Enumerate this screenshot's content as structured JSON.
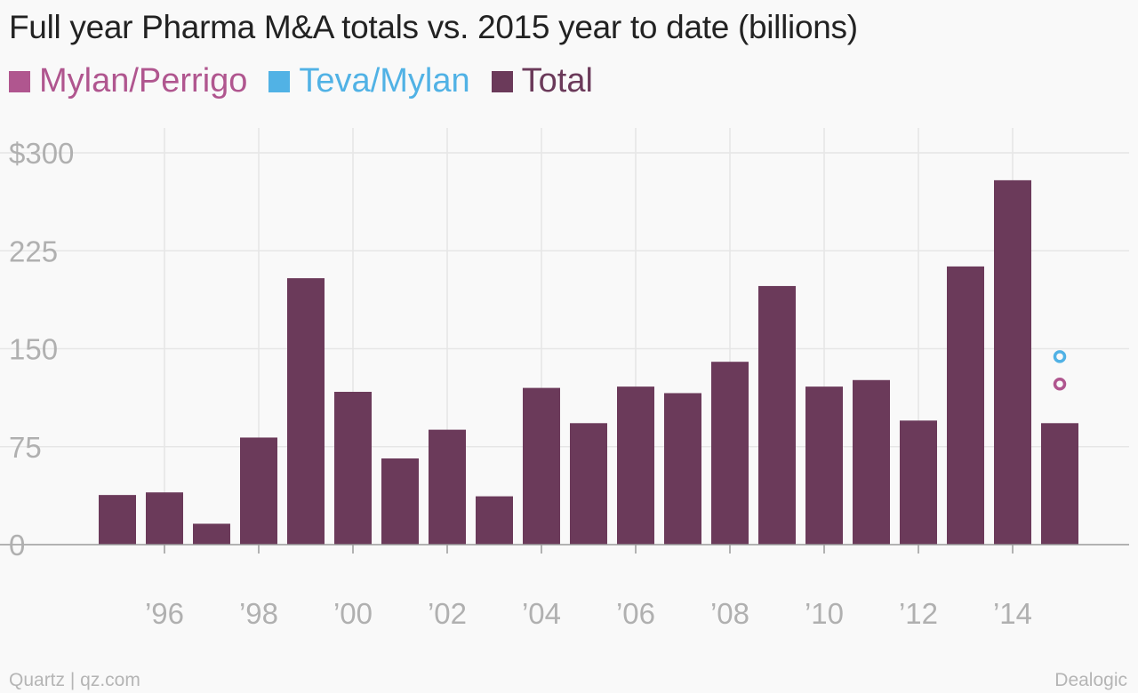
{
  "chart_data": {
    "type": "bar",
    "title": "Full year Pharma M&A totals vs. 2015 year to date (billions)",
    "legend": [
      {
        "label": "Mylan/Perrigo",
        "color": "#b0568f",
        "marker": "circle"
      },
      {
        "label": "Teva/Mylan",
        "color": "#51b2e5",
        "marker": "circle"
      },
      {
        "label": "Total",
        "color": "#6b3a5a",
        "marker": "bar"
      }
    ],
    "legend_position": "top-left",
    "categories": [
      "1995",
      "1996",
      "1997",
      "1998",
      "1999",
      "2000",
      "2001",
      "2002",
      "2003",
      "2004",
      "2005",
      "2006",
      "2007",
      "2008",
      "2009",
      "2010",
      "2011",
      "2012",
      "2013",
      "2014",
      "2015"
    ],
    "series": [
      {
        "name": "Total",
        "type": "bar",
        "color": "#6b3a5a",
        "values": [
          38,
          40,
          16,
          82,
          204,
          117,
          66,
          88,
          37,
          120,
          93,
          121,
          116,
          140,
          198,
          121,
          126,
          95,
          213,
          279,
          93
        ]
      },
      {
        "name": "Mylan/Perrigo",
        "type": "point",
        "color": "#b0568f",
        "points": [
          {
            "x": "2015",
            "y": 123
          }
        ]
      },
      {
        "name": "Teva/Mylan",
        "type": "point",
        "color": "#51b2e5",
        "points": [
          {
            "x": "2015",
            "y": 144
          }
        ]
      }
    ],
    "y_ticks": [
      0,
      75,
      150,
      225,
      300
    ],
    "y_tick_labels": [
      "0",
      "75",
      "150",
      "225",
      "$300"
    ],
    "x_tick_labels": [
      {
        "category": "1996",
        "label": "’96"
      },
      {
        "category": "1998",
        "label": "’98"
      },
      {
        "category": "2000",
        "label": "’00"
      },
      {
        "category": "2002",
        "label": "’02"
      },
      {
        "category": "2004",
        "label": "’04"
      },
      {
        "category": "2006",
        "label": "’06"
      },
      {
        "category": "2008",
        "label": "’08"
      },
      {
        "category": "2010",
        "label": "’10"
      },
      {
        "category": "2012",
        "label": "’12"
      },
      {
        "category": "2014",
        "label": "’14"
      }
    ],
    "ylim": [
      0,
      300
    ],
    "grid": true
  },
  "footer": {
    "source_left": "Quartz | qz.com",
    "source_right": "Dealogic"
  }
}
